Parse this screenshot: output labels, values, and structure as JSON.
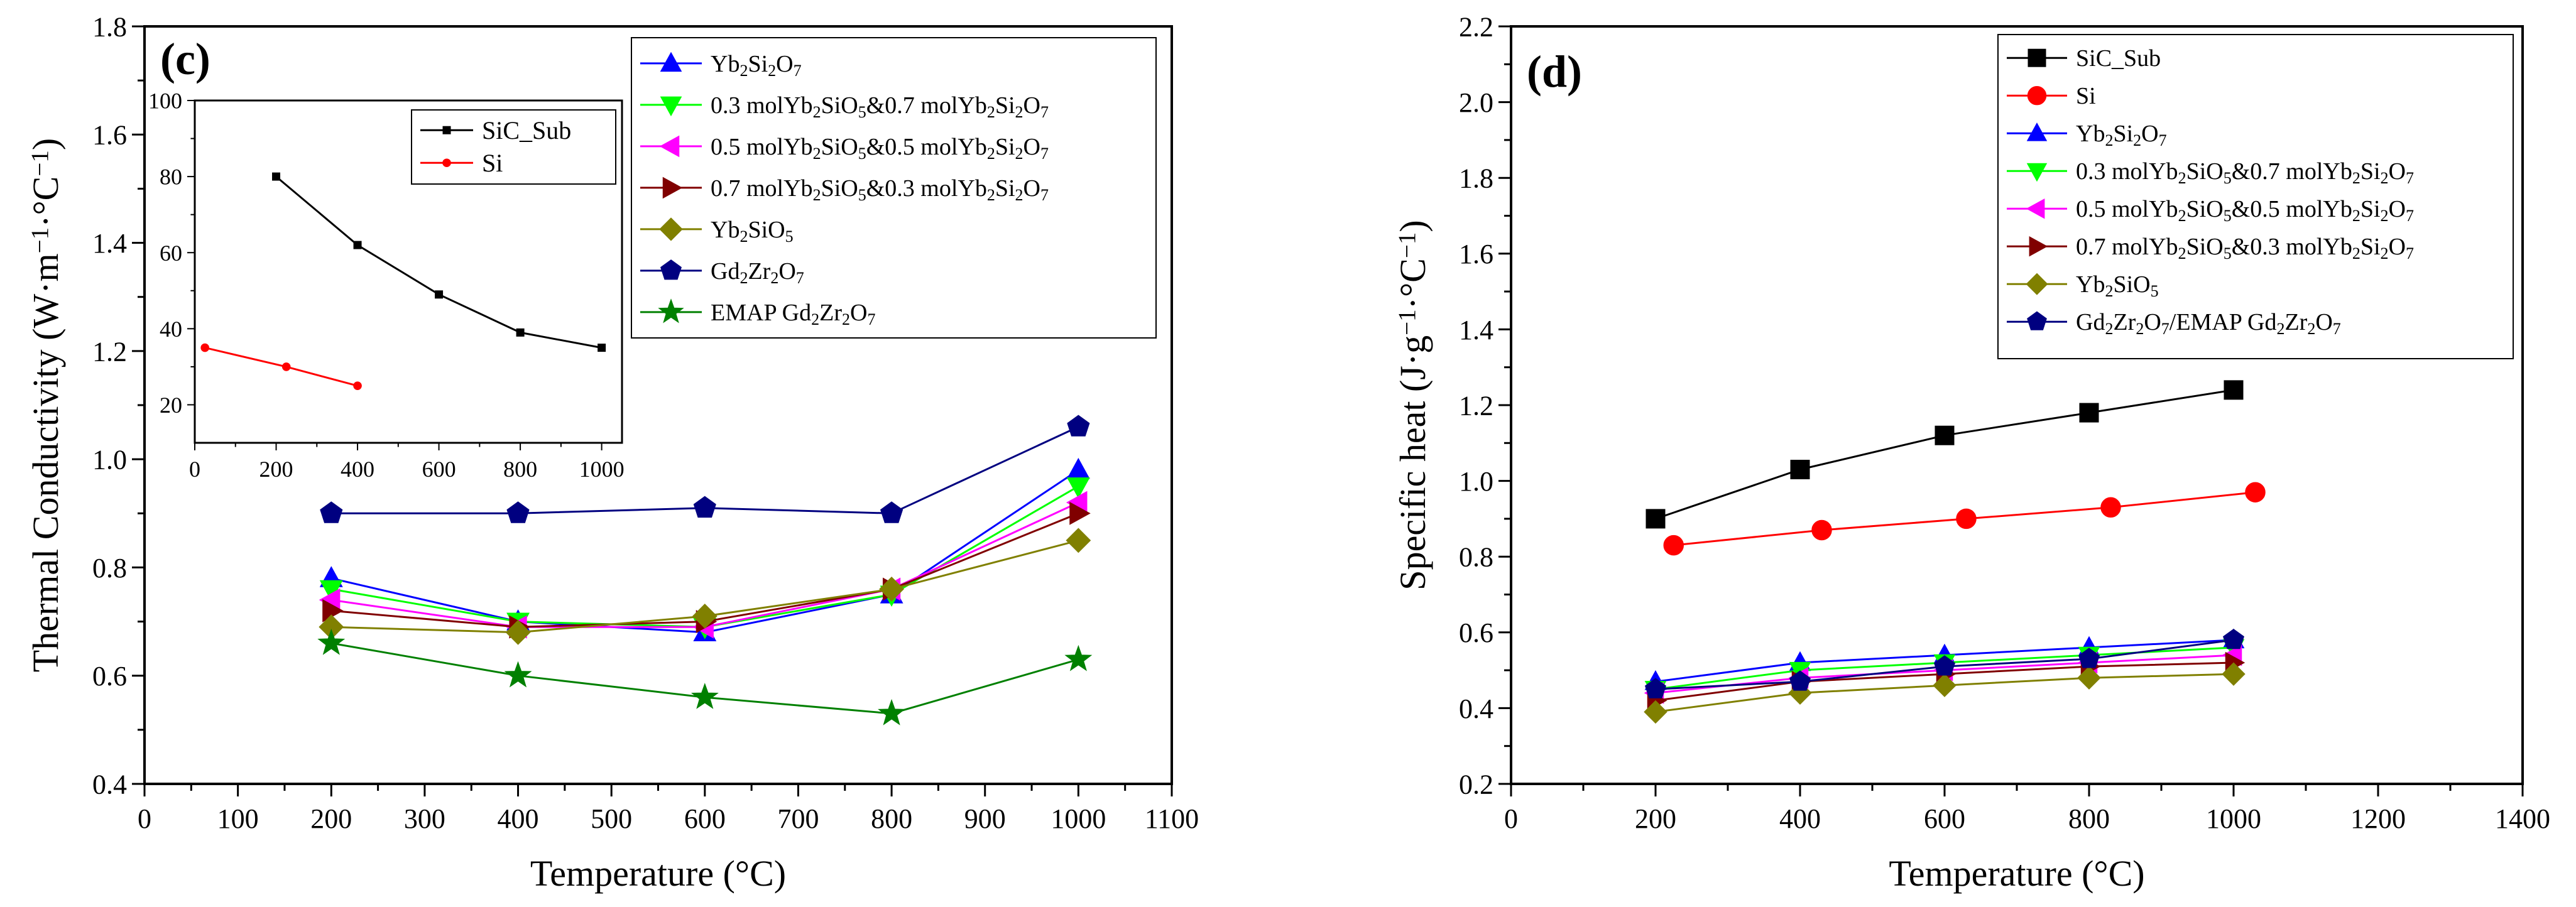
{
  "charts": [
    {
      "panel": "(c)",
      "type": "line",
      "xlabel": "Temperature (°C)",
      "ylabel": "Thermal Conductivity (W·m⁻¹·°C⁻¹)",
      "xlim": [
        0,
        1100
      ],
      "ylim": [
        0.4,
        1.8
      ],
      "xticks": [
        "0",
        "100",
        "200",
        "300",
        "400",
        "500",
        "600",
        "700",
        "800",
        "900",
        "1000",
        "1100"
      ],
      "yticks": [
        "0.4",
        "0.6",
        "0.8",
        "1.0",
        "1.2",
        "1.4",
        "1.6",
        "1.8"
      ],
      "legend_position": "top-right",
      "series": [
        {
          "name": "Yb₂Si₂O₇",
          "color": "#0000ff",
          "marker": "triangle-up",
          "x": [
            200,
            400,
            600,
            800,
            1000
          ],
          "y": [
            0.78,
            0.7,
            0.68,
            0.75,
            0.98
          ]
        },
        {
          "name": "0.3 molYb₂SiO₅&0.7 molYb₂Si₂O₇",
          "color": "#00ff00",
          "marker": "triangle-down",
          "x": [
            200,
            400,
            600,
            800,
            1000
          ],
          "y": [
            0.76,
            0.7,
            0.69,
            0.75,
            0.95
          ]
        },
        {
          "name": "0.5 molYb₂SiO₅&0.5 molYb₂Si₂O₇",
          "color": "#ff00ff",
          "marker": "triangle-left",
          "x": [
            200,
            400,
            600,
            800,
            1000
          ],
          "y": [
            0.74,
            0.69,
            0.69,
            0.76,
            0.92
          ]
        },
        {
          "name": "0.7 molYb₂SiO₅&0.3 molYb₂Si₂O₇",
          "color": "#800000",
          "marker": "triangle-right",
          "x": [
            200,
            400,
            600,
            800,
            1000
          ],
          "y": [
            0.72,
            0.69,
            0.7,
            0.76,
            0.9
          ]
        },
        {
          "name": "Yb₂SiO₅",
          "color": "#808000",
          "marker": "diamond",
          "x": [
            200,
            400,
            600,
            800,
            1000
          ],
          "y": [
            0.69,
            0.68,
            0.71,
            0.76,
            0.85
          ]
        },
        {
          "name": "Gd₂Zr₂O₇",
          "color": "#000080",
          "marker": "pentagon",
          "x": [
            200,
            400,
            600,
            800,
            1000
          ],
          "y": [
            0.9,
            0.9,
            0.91,
            0.9,
            1.06
          ]
        },
        {
          "name": "EMAP Gd₂Zr₂O₇",
          "color": "#008000",
          "marker": "star",
          "x": [
            200,
            400,
            600,
            800,
            1000
          ],
          "y": [
            0.66,
            0.6,
            0.56,
            0.53,
            0.63
          ]
        }
      ],
      "inset": {
        "type": "line",
        "xlim": [
          0,
          1050
        ],
        "ylim": [
          10,
          100
        ],
        "xticks": [
          "0",
          "200",
          "400",
          "600",
          "800",
          "1000"
        ],
        "yticks": [
          "20",
          "40",
          "60",
          "80",
          "100"
        ],
        "legend_position": "top-right",
        "series": [
          {
            "name": "SiC_Sub",
            "color": "#000000",
            "marker": "square",
            "x": [
              200,
              400,
              600,
              800,
              1000
            ],
            "y": [
              80,
              62,
              49,
              39,
              35
            ]
          },
          {
            "name": "Si",
            "color": "#ff0000",
            "marker": "circle",
            "x": [
              25,
              225,
              400
            ],
            "y": [
              35,
              30,
              25
            ]
          }
        ]
      }
    },
    {
      "panel": "(d)",
      "type": "line",
      "xlabel": "Temperature (°C)",
      "ylabel": "Specific heat (J·g⁻¹·°C⁻¹)",
      "xlim": [
        0,
        1400
      ],
      "ylim": [
        0.2,
        2.2
      ],
      "xticks": [
        "0",
        "200",
        "400",
        "600",
        "800",
        "1000",
        "1200",
        "1400"
      ],
      "yticks": [
        "0.2",
        "0.4",
        "0.6",
        "0.8",
        "1.0",
        "1.2",
        "1.4",
        "1.6",
        "1.8",
        "2.0",
        "2.2"
      ],
      "legend_position": "top-right",
      "series": [
        {
          "name": "SiC_Sub",
          "color": "#000000",
          "marker": "square",
          "x": [
            200,
            400,
            600,
            800,
            1000
          ],
          "y": [
            0.9,
            1.03,
            1.12,
            1.18,
            1.24
          ]
        },
        {
          "name": "Si",
          "color": "#ff0000",
          "marker": "circle",
          "x": [
            225,
            430,
            630,
            830,
            1030
          ],
          "y": [
            0.83,
            0.87,
            0.9,
            0.93,
            0.97
          ]
        },
        {
          "name": "Yb₂Si₂O₇",
          "color": "#0000ff",
          "marker": "triangle-up",
          "x": [
            200,
            400,
            600,
            800,
            1000
          ],
          "y": [
            0.47,
            0.52,
            0.54,
            0.56,
            0.58
          ]
        },
        {
          "name": "0.3 molYb₂SiO₅&0.7 molYb₂Si₂O₇",
          "color": "#00ff00",
          "marker": "triangle-down",
          "x": [
            200,
            400,
            600,
            800,
            1000
          ],
          "y": [
            0.45,
            0.5,
            0.52,
            0.54,
            0.56
          ]
        },
        {
          "name": "0.5 molYb₂SiO₅&0.5 molYb₂Si₂O₇",
          "color": "#ff00ff",
          "marker": "triangle-left",
          "x": [
            200,
            400,
            600,
            800,
            1000
          ],
          "y": [
            0.44,
            0.48,
            0.5,
            0.52,
            0.54
          ]
        },
        {
          "name": "0.7 molYb₂SiO₅&0.3 molYb₂Si₂O₇",
          "color": "#800000",
          "marker": "triangle-right",
          "x": [
            200,
            400,
            600,
            800,
            1000
          ],
          "y": [
            0.42,
            0.47,
            0.49,
            0.51,
            0.52
          ]
        },
        {
          "name": "Yb₂SiO₅",
          "color": "#808000",
          "marker": "diamond",
          "x": [
            200,
            400,
            600,
            800,
            1000
          ],
          "y": [
            0.39,
            0.44,
            0.46,
            0.48,
            0.49
          ]
        },
        {
          "name": "Gd₂Zr₂O₇/EMAP Gd₂Zr₂O₇",
          "color": "#000080",
          "marker": "pentagon",
          "x": [
            200,
            400,
            600,
            800,
            1000
          ],
          "y": [
            0.45,
            0.47,
            0.51,
            0.53,
            0.58
          ]
        }
      ]
    }
  ]
}
